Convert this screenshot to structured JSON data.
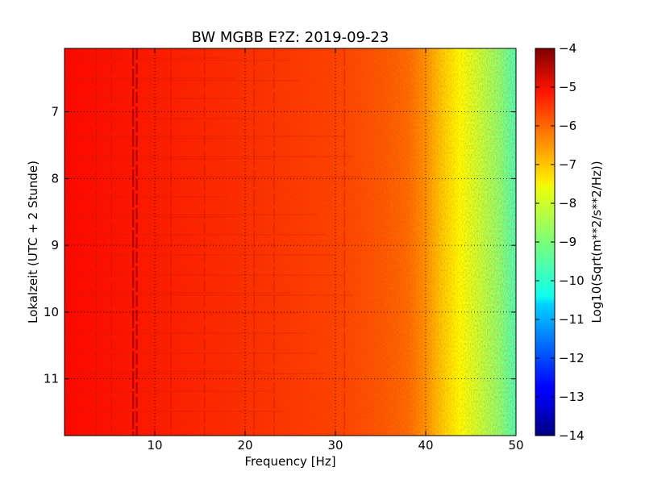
{
  "chart_data": {
    "type": "heatmap",
    "title": "BW MGBB E?Z: 2019-09-23",
    "xlabel": "Frequency [Hz]",
    "ylabel": "Lokalzeit (UTC + 2 Stunde)",
    "xlim": [
      0,
      50
    ],
    "ylim": [
      11.85,
      6.05
    ],
    "y_inverted": true,
    "xticks": [
      10,
      20,
      30,
      40,
      50
    ],
    "yticks": [
      7,
      8,
      9,
      10,
      11
    ],
    "grid": true,
    "colorbar": {
      "label": "Log10(Sqrt(m**2/s**2/Hz))",
      "colormap": "jet",
      "range": [
        -14,
        -4
      ],
      "ticks": [
        -4,
        -5,
        -6,
        -7,
        -8,
        -9,
        -10,
        -11,
        -12,
        -13,
        -14
      ]
    },
    "spectrum_profile": {
      "frequency_hz": [
        0,
        5,
        10,
        15,
        20,
        25,
        30,
        35,
        38,
        40,
        42,
        44,
        46,
        48,
        50
      ],
      "log10_amplitude": [
        -5.3,
        -5.4,
        -5.5,
        -5.6,
        -5.7,
        -5.8,
        -5.9,
        -6.1,
        -6.3,
        -6.7,
        -7.3,
        -7.8,
        -8.3,
        -8.8,
        -9.5
      ]
    },
    "persistent_lines_hz": [
      3.5,
      5.2,
      7.6,
      8.0,
      11.8,
      15.5,
      21.0,
      23.2,
      31.0
    ],
    "time_range_hours": [
      6.05,
      11.85
    ]
  }
}
